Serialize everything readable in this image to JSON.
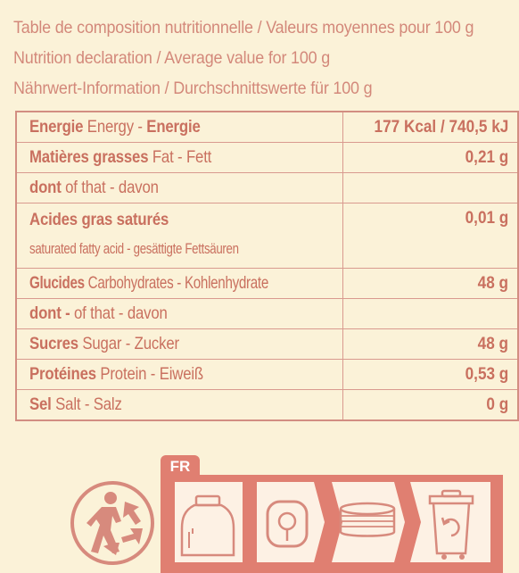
{
  "header": {
    "line_fr": "Table de composition nutritionnelle / Valeurs moyennes pour 100 g",
    "line_en": "Nutrition declaration / Average value for 100 g",
    "line_de": "Nährwert-Information / Durchschnittswerte für 100 g"
  },
  "rows": {
    "energy": {
      "fr": "Energie",
      "rest": " Energy - ",
      "de": "Energie",
      "value": "177 Kcal / 740,5 kJ"
    },
    "fat": {
      "fr": "Matières grasses",
      "rest": " Fat - ",
      "de": "Fett",
      "value": "0,21 g"
    },
    "fat_of": {
      "fr": "dont",
      "rest": " of that - davon",
      "value": ""
    },
    "sat": {
      "fr": "Acides gras saturés",
      "sub": "saturated fatty acid - gesättigte Fettsäuren",
      "value": "0,01 g"
    },
    "carbs": {
      "fr": "Glucides",
      "rest": " Carbohydrates - Kohlenhydrate",
      "value": "48 g"
    },
    "carbs_of": {
      "fr": "dont -",
      "rest": " of that - davon",
      "value": ""
    },
    "sugar": {
      "fr": "Sucres",
      "rest": "  Sugar - Zucker",
      "value": "48 g"
    },
    "protein": {
      "fr": "Protéines",
      "rest": " Protein - ",
      "de": "Eiweiß",
      "value": "0,53 g"
    },
    "salt": {
      "fr": "Sel",
      "rest": "  Salt - Salz",
      "value": "0 g"
    }
  },
  "recycling": {
    "tab": "FR"
  },
  "colors": {
    "background": "#fbf2d8",
    "text": "#cf7b6e",
    "band": "#e07f71"
  }
}
